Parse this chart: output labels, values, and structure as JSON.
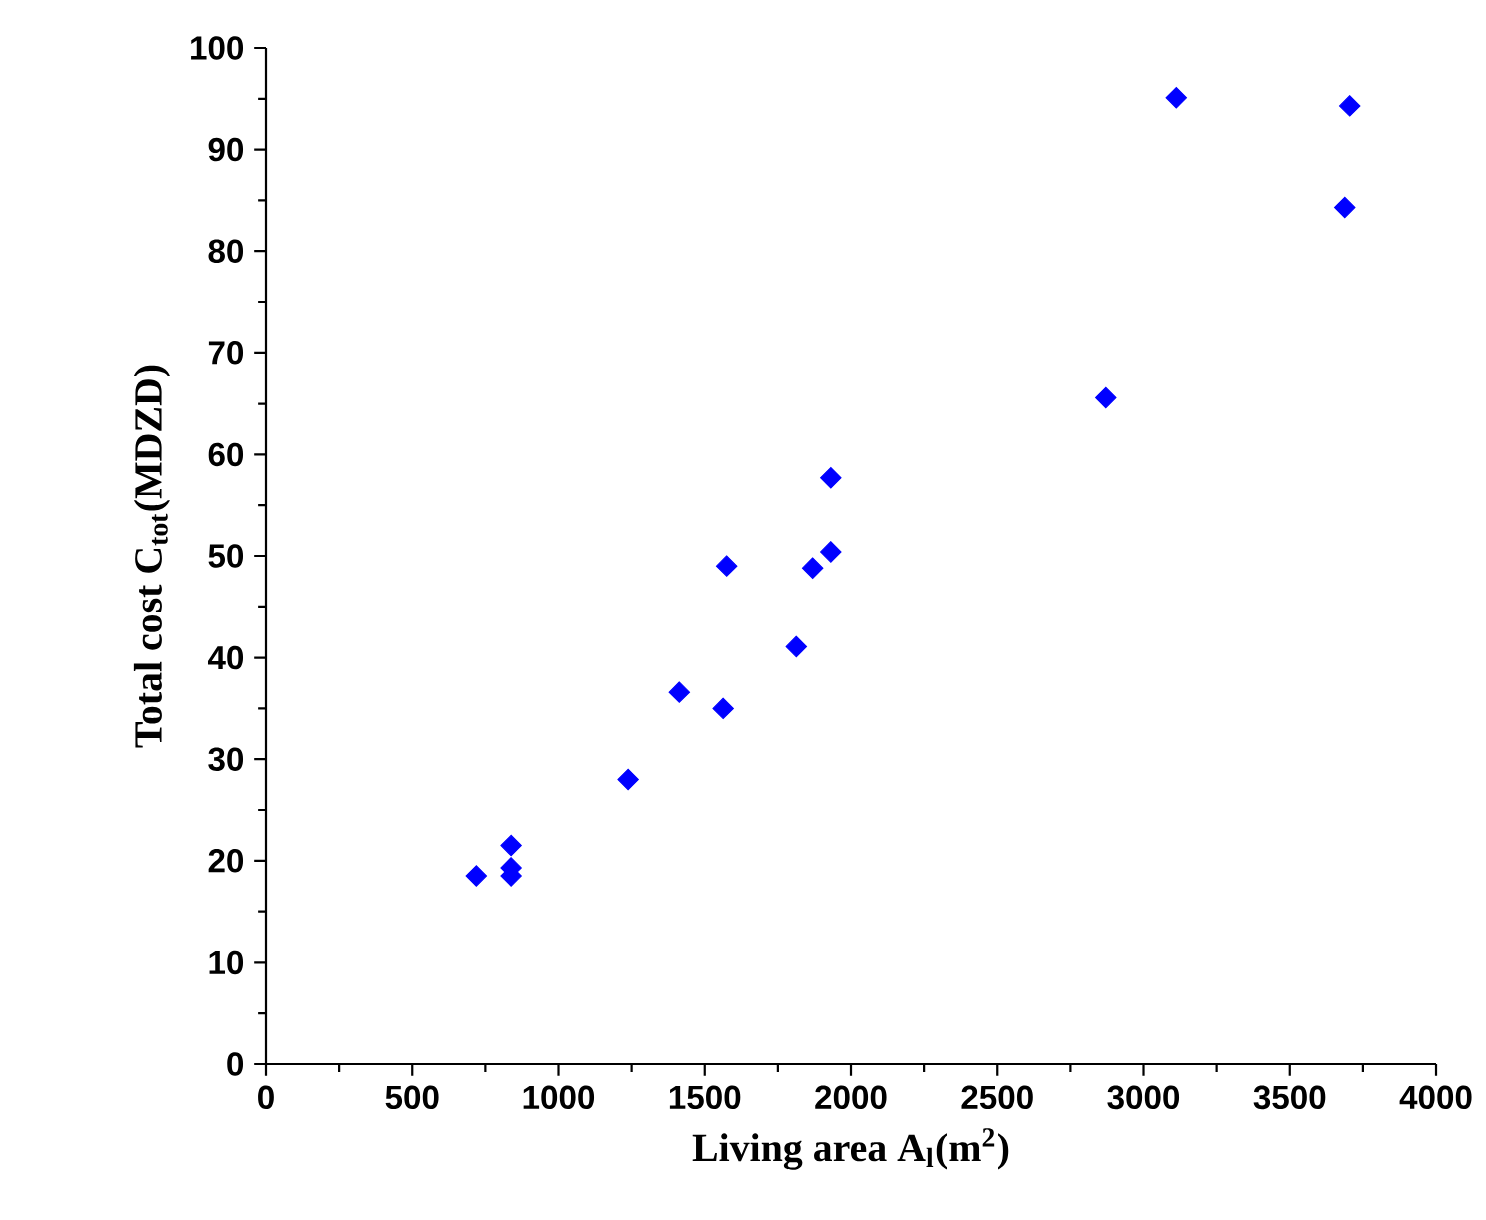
{
  "chart_data": {
    "type": "scatter",
    "xlabel": "Living area A$_{l}$(m$^{2}$)",
    "ylabel": "Total cost C$_{tot}$(MDZD)",
    "x": [
      719,
      838,
      838,
      838,
      1238,
      1413,
      1563,
      1575,
      1813,
      1869,
      1931,
      1931,
      2871,
      3112,
      3688,
      3705
    ],
    "values": [
      18.5,
      21.5,
      19.3,
      18.5,
      28.0,
      36.6,
      35.0,
      49.0,
      41.1,
      48.8,
      57.7,
      50.4,
      65.6,
      95.1,
      84.3,
      94.3
    ],
    "color": "#0000ff",
    "marker": "diamond",
    "xlim": [
      0,
      4000
    ],
    "ylim": [
      0,
      100
    ],
    "xticks": [
      0,
      500,
      1000,
      1500,
      2000,
      2500,
      3000,
      3500,
      4000
    ],
    "yticks": [
      0,
      10,
      20,
      30,
      40,
      50,
      60,
      70,
      80,
      90,
      100
    ]
  }
}
